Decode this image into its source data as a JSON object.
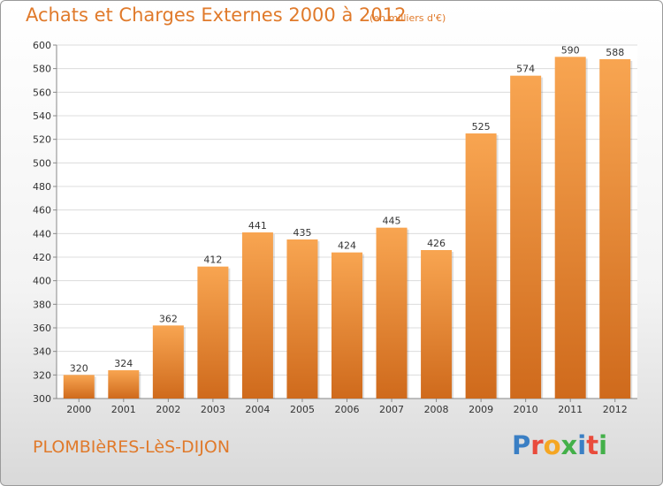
{
  "header": {
    "title": "Achats et Charges Externes 2000 à 2012",
    "subtitle": "(en milliers d'€)"
  },
  "footer": {
    "commune": "PLOMBIèRES-LèS-DIJON",
    "logo_text": "Proxiti"
  },
  "colors": {
    "accent": "#e07a2b",
    "bar_top": "#f8a551",
    "bar_bottom": "#cf6a1c",
    "logo_letters": [
      "#3a7fc4",
      "#e94b3c",
      "#f5a623",
      "#43b049",
      "#3a7fc4",
      "#e94b3c",
      "#43b049"
    ]
  },
  "chart_data": {
    "type": "bar",
    "title": "Achats et Charges Externes 2000 à 2012",
    "subtitle": "(en milliers d'€)",
    "categories": [
      "2000",
      "2001",
      "2002",
      "2003",
      "2004",
      "2005",
      "2006",
      "2007",
      "2008",
      "2009",
      "2010",
      "2011",
      "2012"
    ],
    "values": [
      320,
      324,
      362,
      412,
      441,
      435,
      424,
      445,
      426,
      525,
      574,
      590,
      588
    ],
    "ylim": [
      300,
      600
    ],
    "yticks": [
      300,
      320,
      340,
      360,
      380,
      400,
      420,
      440,
      460,
      480,
      500,
      520,
      540,
      560,
      580,
      600
    ],
    "grid": true,
    "data_labels": true
  }
}
